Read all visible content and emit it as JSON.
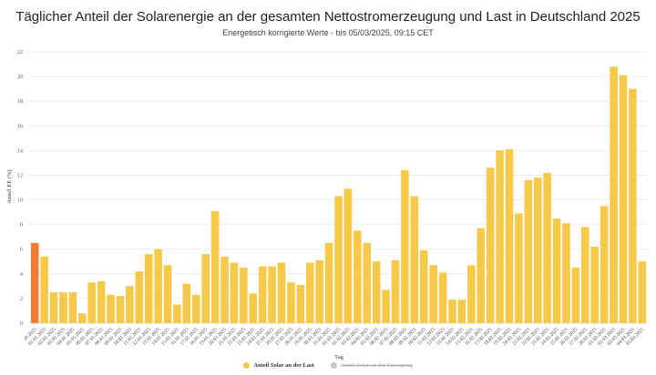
{
  "chart_data": {
    "type": "bar",
    "title": "Täglicher Anteil der Solarenergie an der gesamten Nettostromerzeugung und Last in Deutschland 2025",
    "subtitle": "Energetisch korrigierte Werte - bis 05/03/2025, 09:15 CET",
    "ylabel": "Anteil EE (%)",
    "xlabel": "Tag",
    "ylim": [
      0,
      22
    ],
    "yticks": [
      0,
      2,
      4,
      6,
      8,
      10,
      12,
      14,
      16,
      18,
      20,
      22
    ],
    "grid": true,
    "legend_position": "bottom",
    "categories": [
      "Ø 2025",
      "01.01.2025",
      "02.01.2025",
      "03.01.2025",
      "04.01.2025",
      "05.01.2025",
      "06.01.2025",
      "07.01.2025",
      "08.01.2025",
      "09.01.2025",
      "10.01.2025",
      "11.01.2025",
      "12.01.2025",
      "13.01.2025",
      "14.01.2025",
      "15.01.2025",
      "16.01.2025",
      "17.01.2025",
      "18.01.2025",
      "19.01.2025",
      "20.01.2025",
      "21.01.2025",
      "22.01.2025",
      "23.01.2025",
      "24.01.2025",
      "25.01.2025",
      "26.01.2025",
      "27.01.2025",
      "28.01.2025",
      "29.01.2025",
      "30.01.2025",
      "31.01.2025",
      "01.02.2025",
      "02.02.2025",
      "03.02.2025",
      "04.02.2025",
      "05.02.2025",
      "06.02.2025",
      "07.02.2025",
      "08.02.2025",
      "09.02.2025",
      "10.02.2025",
      "11.02.2025",
      "12.02.2025",
      "13.02.2025",
      "14.02.2025",
      "15.02.2025",
      "16.02.2025",
      "17.02.2025",
      "18.02.2025",
      "19.02.2025",
      "20.02.2025",
      "21.02.2025",
      "22.02.2025",
      "23.02.2025",
      "24.02.2025",
      "25.02.2025",
      "26.02.2025",
      "27.02.2025",
      "28.02.2025",
      "01.03.2025",
      "02.03.2025",
      "03.03.2025",
      "04.03.2025",
      "05.03.2025"
    ],
    "series": [
      {
        "name": "Anteil Solar an der Last",
        "visible": true,
        "color": "#f7c948",
        "highlight_color": "#ef7a30",
        "values": [
          6.5,
          5.4,
          2.5,
          2.5,
          2.5,
          0.8,
          3.3,
          3.4,
          2.3,
          2.2,
          3.0,
          4.2,
          5.6,
          6.0,
          4.7,
          1.5,
          3.2,
          2.3,
          5.6,
          9.1,
          5.4,
          4.9,
          4.5,
          2.4,
          4.6,
          4.6,
          4.9,
          3.3,
          3.1,
          4.9,
          5.1,
          6.5,
          10.3,
          10.9,
          7.5,
          6.5,
          5.0,
          2.7,
          5.1,
          12.4,
          10.3,
          5.9,
          4.7,
          4.1,
          1.9,
          1.9,
          4.7,
          7.7,
          12.6,
          14.0,
          14.1,
          8.9,
          11.6,
          11.8,
          12.2,
          8.5,
          8.1,
          4.5,
          7.8,
          6.2,
          9.5,
          20.8,
          20.1,
          19.0,
          5.0
        ]
      },
      {
        "name": "Anteil Solar an der Erzeugung",
        "visible": false,
        "color": "#c8c8c8"
      }
    ]
  }
}
